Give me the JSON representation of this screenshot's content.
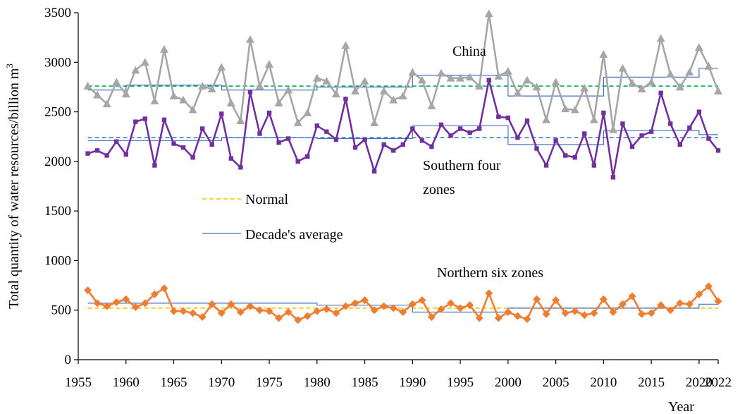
{
  "chart_data": {
    "type": "line",
    "title": "",
    "xlabel": "Year",
    "ylabel": "Total quantity of water resources/billion m",
    "ylabel_superscript": "3",
    "xlim": [
      1955,
      2022
    ],
    "ylim": [
      0,
      3500
    ],
    "x_ticks": [
      1955,
      1960,
      1965,
      1970,
      1975,
      1980,
      1985,
      1990,
      1995,
      2000,
      2005,
      2010,
      2015,
      2020,
      2022
    ],
    "y_ticks": [
      0,
      500,
      1000,
      1500,
      2000,
      2500,
      3000,
      3500
    ],
    "grid": false,
    "x": [
      1956,
      1957,
      1958,
      1959,
      1960,
      1961,
      1962,
      1963,
      1964,
      1965,
      1966,
      1967,
      1968,
      1969,
      1970,
      1971,
      1972,
      1973,
      1974,
      1975,
      1976,
      1977,
      1978,
      1979,
      1980,
      1981,
      1982,
      1983,
      1984,
      1985,
      1986,
      1987,
      1988,
      1989,
      1990,
      1991,
      1992,
      1993,
      1994,
      1995,
      1996,
      1997,
      1998,
      1999,
      2000,
      2001,
      2002,
      2003,
      2004,
      2005,
      2006,
      2007,
      2008,
      2009,
      2010,
      2011,
      2012,
      2013,
      2014,
      2015,
      2016,
      2017,
      2018,
      2019,
      2020,
      2021,
      2022
    ],
    "series": [
      {
        "label": "China",
        "color": "#a6a6a6",
        "marker": "triangle",
        "values": [
          2760,
          2670,
          2580,
          2800,
          2680,
          2920,
          3000,
          2610,
          3130,
          2660,
          2620,
          2520,
          2760,
          2730,
          2950,
          2590,
          2410,
          3230,
          2760,
          2980,
          2590,
          2720,
          2390,
          2490,
          2840,
          2810,
          2680,
          3170,
          2710,
          2810,
          2390,
          2710,
          2620,
          2660,
          2900,
          2820,
          2560,
          2890,
          2840,
          2840,
          2850,
          2760,
          3490,
          2860,
          2910,
          2690,
          2820,
          2750,
          2420,
          2800,
          2530,
          2520,
          2740,
          2420,
          3080,
          2320,
          2940,
          2790,
          2730,
          2800,
          3240,
          2880,
          2750,
          2900,
          3150,
          2960,
          2710
        ],
        "normal": 2760,
        "decade_avg": [
          2720,
          2770,
          2720,
          2750,
          2870,
          2660,
          2850,
          2940
        ]
      },
      {
        "label": "Southern four zones",
        "label_line1": "Southern four",
        "label_line2": "zones",
        "color": "#7030a0",
        "marker": "square",
        "values": [
          2080,
          2110,
          2060,
          2200,
          2070,
          2400,
          2430,
          1960,
          2420,
          2180,
          2140,
          2040,
          2330,
          2170,
          2480,
          2030,
          1940,
          2700,
          2280,
          2490,
          2190,
          2230,
          2000,
          2050,
          2360,
          2300,
          2220,
          2630,
          2140,
          2220,
          1900,
          2170,
          2110,
          2170,
          2330,
          2210,
          2150,
          2370,
          2260,
          2330,
          2290,
          2330,
          2820,
          2450,
          2440,
          2240,
          2410,
          2130,
          1960,
          2210,
          2060,
          2040,
          2280,
          1960,
          2490,
          1840,
          2380,
          2150,
          2260,
          2300,
          2690,
          2380,
          2170,
          2340,
          2500,
          2230,
          2110
        ],
        "normal": 2240,
        "decade_avg": [
          2210,
          2240,
          2230,
          2360,
          2170,
          2310,
          2270
        ]
      },
      {
        "label": "Northern six zones",
        "color": "#ed7d31",
        "marker": "diamond",
        "values": [
          700,
          570,
          540,
          580,
          610,
          530,
          570,
          660,
          720,
          490,
          490,
          470,
          430,
          560,
          470,
          560,
          480,
          540,
          500,
          490,
          420,
          480,
          400,
          440,
          490,
          510,
          470,
          540,
          570,
          600,
          500,
          540,
          520,
          480,
          560,
          600,
          430,
          510,
          570,
          520,
          550,
          420,
          670,
          420,
          480,
          440,
          410,
          610,
          460,
          600,
          470,
          490,
          450,
          470,
          610,
          480,
          560,
          640,
          460,
          470,
          550,
          500,
          570,
          560,
          660,
          740,
          590
        ],
        "normal": 520,
        "decade_avg": [
          570,
          550,
          480,
          520,
          520,
          560
        ]
      }
    ],
    "normal_colors": {
      "China": "#00b050",
      "Southern four zones": "#2e75b6",
      "Northern six zones": "#ffc000"
    },
    "decade_avg_color": "#4472c4",
    "legend": [
      {
        "label": "Normal",
        "style": "dashed",
        "color": "#ffc000"
      },
      {
        "label": "Decade's average",
        "style": "solid",
        "color": "#4472c4"
      }
    ]
  }
}
